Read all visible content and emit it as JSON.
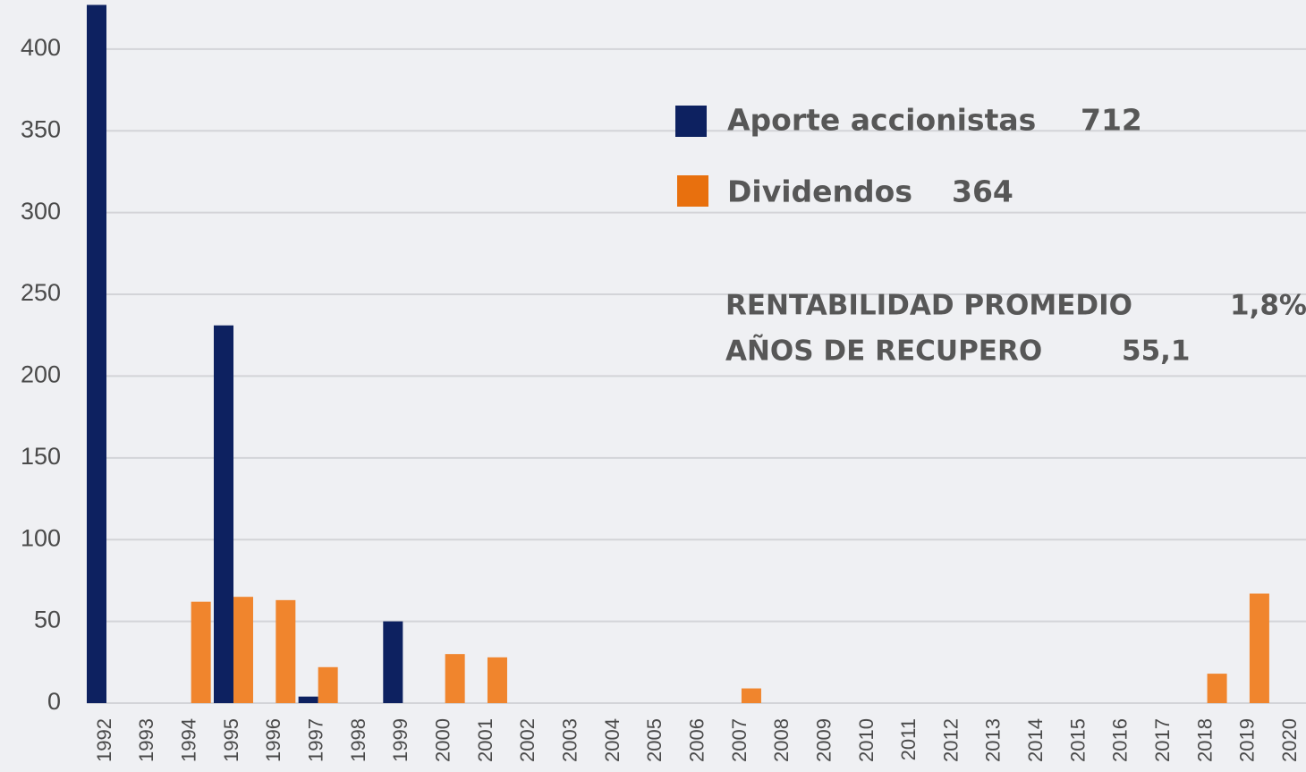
{
  "chart_data": {
    "type": "bar",
    "categories": [
      "1992",
      "1993",
      "1994",
      "1995",
      "1996",
      "1997",
      "1998",
      "1999",
      "2000",
      "2001",
      "2002",
      "2003",
      "2004",
      "2005",
      "2006",
      "2007",
      "2008",
      "2009",
      "2010",
      "2011",
      "2012",
      "2013",
      "2014",
      "2015",
      "2016",
      "2017",
      "2018",
      "2019",
      "2020"
    ],
    "series": [
      {
        "name": "Aporte accionistas",
        "total": 712,
        "color": "#0d2160",
        "values": [
          427,
          null,
          null,
          231,
          null,
          4,
          null,
          50,
          null,
          null,
          null,
          null,
          null,
          null,
          null,
          null,
          null,
          null,
          null,
          null,
          null,
          null,
          null,
          null,
          null,
          null,
          null,
          null,
          null
        ]
      },
      {
        "name": "Dividendos",
        "total": 364,
        "color": "#f0852d",
        "values": [
          null,
          null,
          62,
          65,
          63,
          22,
          null,
          null,
          30,
          28,
          null,
          null,
          null,
          null,
          null,
          9,
          null,
          null,
          null,
          null,
          null,
          null,
          null,
          null,
          null,
          null,
          18,
          67,
          null
        ]
      }
    ],
    "annotations": [
      {
        "label": "RENTABILIDAD PROMEDIO",
        "value": "1,8%"
      },
      {
        "label": "AÑOS DE RECUPERO",
        "value": "55,1"
      }
    ],
    "ylim": [
      0,
      430
    ],
    "yticks": [
      0,
      50,
      100,
      150,
      200,
      250,
      300,
      350,
      400
    ],
    "grid": true
  }
}
